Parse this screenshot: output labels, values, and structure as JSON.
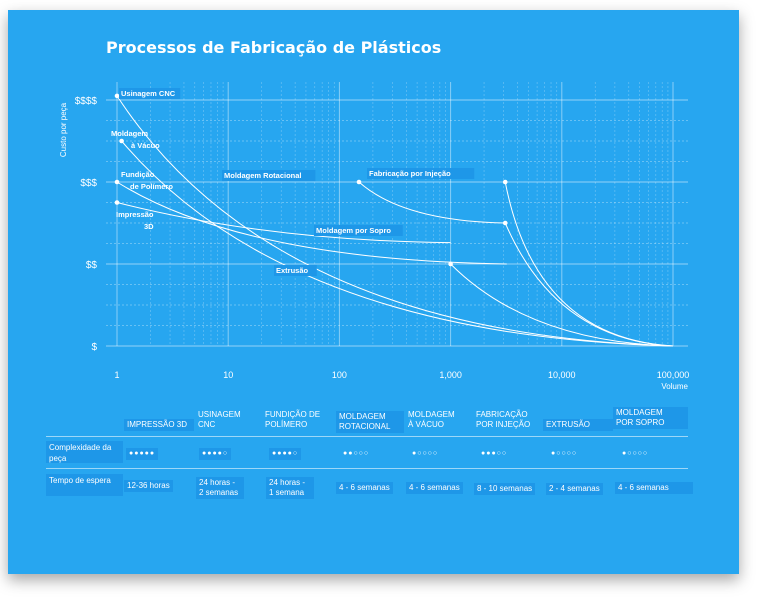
{
  "title": "Processos de Fabricação de Plásticos",
  "chart_data": {
    "type": "line",
    "title": "Processos de Fabricação de Plásticos",
    "xlabel": "Volume",
    "ylabel": "Custo por peça",
    "x_scale": "log",
    "xlim": [
      1,
      100000
    ],
    "x_ticks": [
      "1",
      "10",
      "100",
      "1,000",
      "10,000",
      "100,000"
    ],
    "y_tick_labels": [
      "$",
      "$$",
      "$$$",
      "$$$$"
    ],
    "ylim": [
      0,
      3
    ],
    "series": [
      {
        "name": "Usinagem CNC",
        "points": [
          [
            1,
            3.05
          ],
          [
            100000,
            0
          ]
        ]
      },
      {
        "name": "Moldagem à Vácuo",
        "points": [
          [
            1.1,
            2.5
          ],
          [
            100000,
            0
          ]
        ]
      },
      {
        "name": "Fundição de Polímero",
        "points": [
          [
            1,
            2.0
          ],
          [
            3200,
            1.0
          ]
        ]
      },
      {
        "name": "Impressão 3D",
        "points": [
          [
            1,
            1.75
          ],
          [
            1000,
            1.26
          ]
        ]
      },
      {
        "name": "Moldagem Rotacional",
        "points": [
          [
            150,
            2.0
          ],
          [
            3100,
            1.5
          ],
          [
            100000,
            0
          ]
        ]
      },
      {
        "name": "Extrusão",
        "points": [
          [
            1000,
            1.0
          ],
          [
            100000,
            0
          ]
        ]
      },
      {
        "name": "Fabricação por Injeção",
        "points": [
          [
            3100,
            2.0
          ],
          [
            100000,
            0
          ]
        ]
      },
      {
        "name": "Moldagem por Sopro",
        "points": [
          [
            3100,
            1.5
          ]
        ]
      }
    ]
  },
  "table": {
    "columns": [
      "IMPRESSÃO 3D",
      "USINAGEM CNC",
      "FUNDIÇÃO DE POLÍMERO",
      "MOLDAGEM ROTACIONAL",
      "MOLDAGEM À VÁCUO",
      "FABRICAÇÃO POR INJEÇÃO",
      "EXTRUSÃO",
      "MOLDAGEM POR SOPRO"
    ],
    "row_complexity_label": "Complexidade da peça",
    "complexity_ratings": [
      5,
      4,
      4,
      2,
      1,
      3,
      1,
      1
    ],
    "complexity_max": 5,
    "row_leadtime_label": "Tempo de espera",
    "lead_times": [
      "12-36 horas",
      "24 horas - 2 semanas",
      "24 horas - 1 semana",
      "4 - 6 semanas",
      "4 - 6 semanas",
      "8 - 10 semanas",
      "2 - 4 semanas",
      "4 - 6 semanas"
    ]
  },
  "colors": {
    "background": "#27a6f0",
    "line": "#ffffff",
    "label_box": "#1e97e8"
  }
}
